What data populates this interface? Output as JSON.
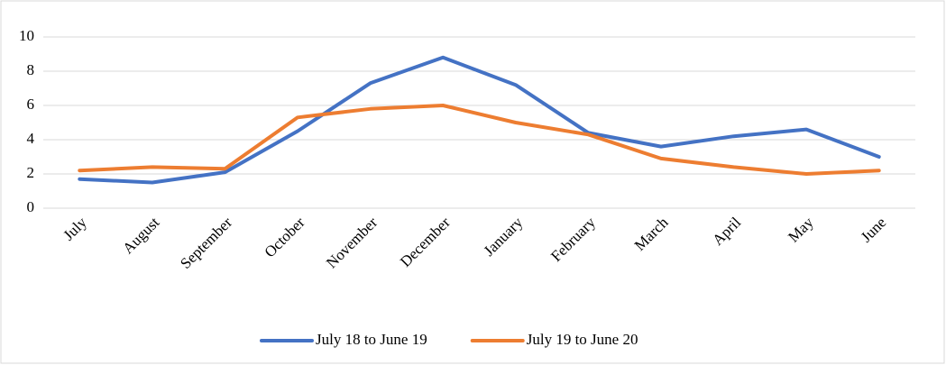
{
  "chart_data": {
    "type": "line",
    "categories": [
      "July",
      "August",
      "September",
      "October",
      "November",
      "December",
      "January",
      "February",
      "March",
      "April",
      "May",
      "June"
    ],
    "series": [
      {
        "name": "July 18 to June 19",
        "color": "#4472c4",
        "values": [
          1.7,
          1.5,
          2.1,
          4.5,
          7.3,
          8.8,
          7.2,
          4.4,
          3.6,
          4.2,
          4.6,
          3.0
        ]
      },
      {
        "name": "July 19 to June 20",
        "color": "#ed7d31",
        "values": [
          2.2,
          2.4,
          2.3,
          5.3,
          5.8,
          6.0,
          5.0,
          4.3,
          2.9,
          2.4,
          2.0,
          2.2
        ]
      }
    ],
    "ylim": [
      0,
      10
    ],
    "yticks": [
      0,
      2,
      4,
      6,
      8,
      10
    ],
    "grid": true,
    "legend": "bottom"
  }
}
